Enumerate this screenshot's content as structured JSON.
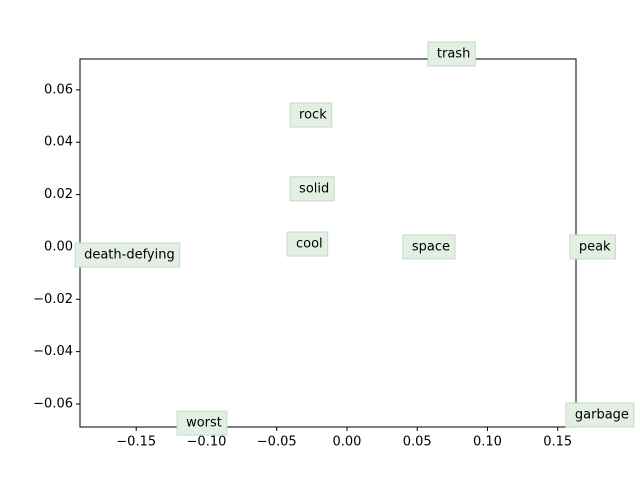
{
  "chart_data": {
    "type": "scatter",
    "labels": [
      "trash",
      "rock",
      "solid",
      "cool",
      "space",
      "peak",
      "death-defying",
      "worst",
      "garbage"
    ],
    "x": [
      0.0576,
      -0.0405,
      -0.0405,
      -0.0427,
      0.0398,
      0.1586,
      -0.1935,
      -0.1209,
      0.1558
    ],
    "y": [
      0.0737,
      0.0504,
      0.0222,
      0.0011,
      0.0,
      0.0,
      -0.0031,
      -0.0673,
      -0.0642
    ],
    "box_color": "#e3efe3",
    "box_edge": "#c5dbc5",
    "xlim": [
      -0.19,
      0.163
    ],
    "ylim": [
      -0.0688,
      0.0718
    ],
    "xticks": [
      {
        "value": -0.15,
        "label": "−0.15"
      },
      {
        "value": -0.1,
        "label": "−0.10"
      },
      {
        "value": -0.05,
        "label": "−0.05"
      },
      {
        "value": 0,
        "label": "0.00"
      },
      {
        "value": 0.05,
        "label": "0.05"
      },
      {
        "value": 0.1,
        "label": "0.10"
      },
      {
        "value": 0.15,
        "label": "0.15"
      }
    ],
    "yticks": [
      {
        "value": -0.06,
        "label": "−0.06"
      },
      {
        "value": -0.04,
        "label": "−0.04"
      },
      {
        "value": -0.02,
        "label": "−0.02"
      },
      {
        "value": 0,
        "label": "0.00"
      },
      {
        "value": 0.02,
        "label": "0.02"
      },
      {
        "value": 0.04,
        "label": "0.04"
      },
      {
        "value": 0.06,
        "label": "0.06"
      }
    ]
  }
}
